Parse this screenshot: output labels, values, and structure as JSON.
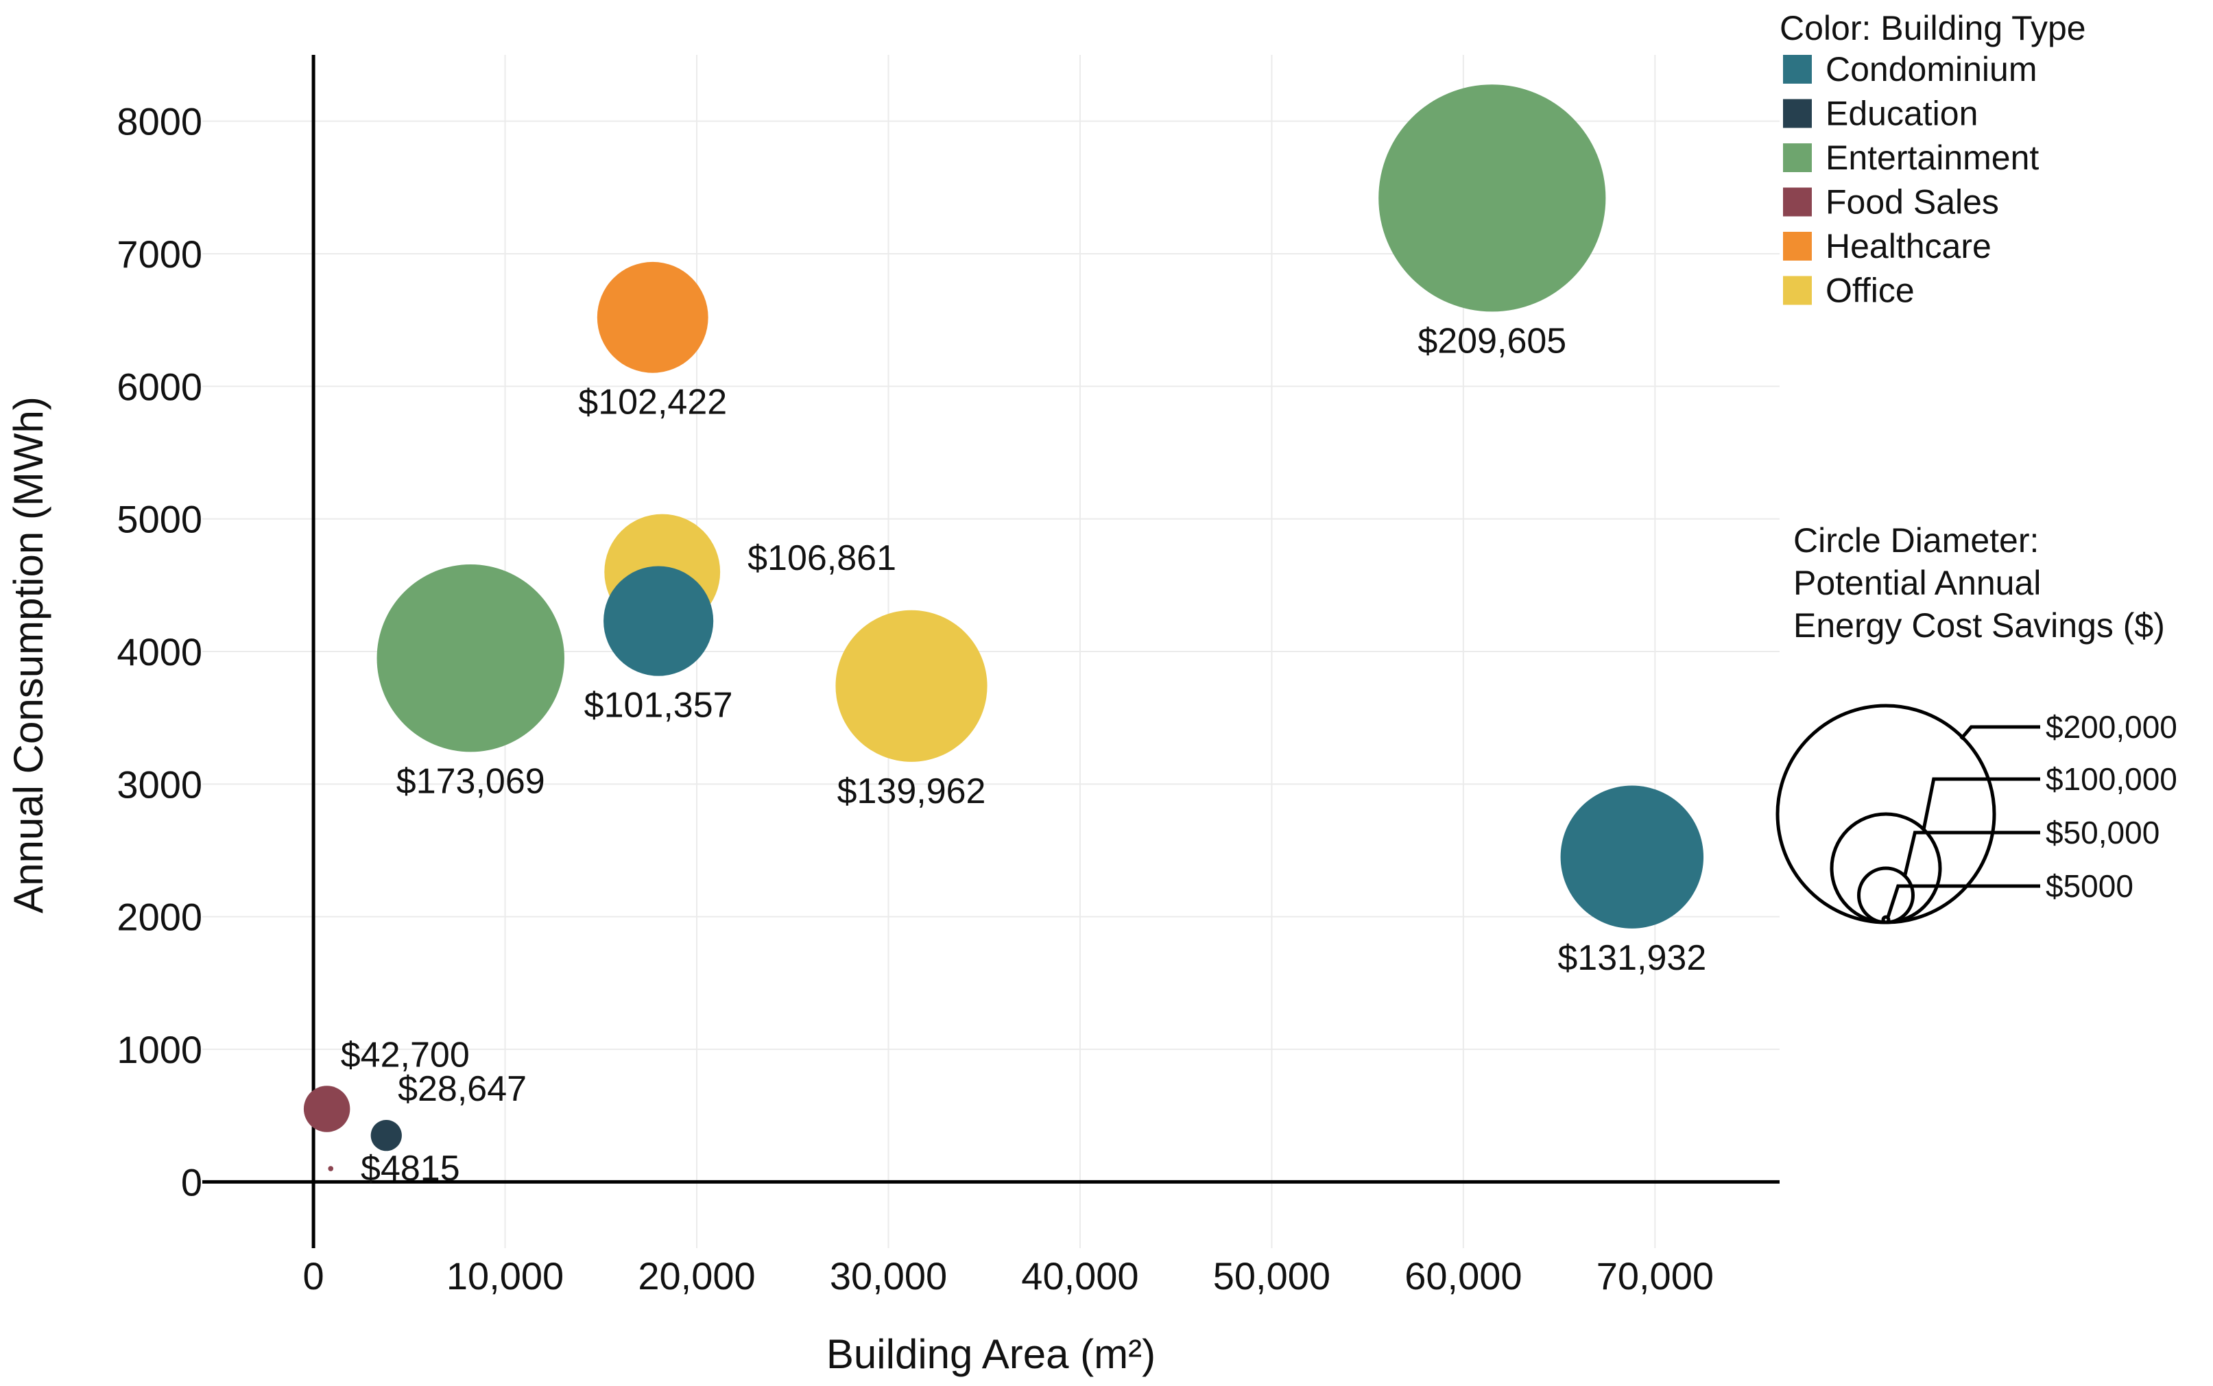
{
  "chart_data": {
    "type": "scatter",
    "xlabel": "Building Area (m²)",
    "ylabel": "Annual Consumption (MWh)",
    "xlim": [
      -5800,
      76500
    ],
    "ylim": [
      -500,
      8500
    ],
    "x_ticks": [
      0,
      10000,
      20000,
      30000,
      40000,
      50000,
      60000,
      70000
    ],
    "x_tick_labels": [
      "0",
      "10,000",
      "20,000",
      "30,000",
      "40,000",
      "50,000",
      "60,000",
      "70,000"
    ],
    "y_ticks": [
      0,
      1000,
      2000,
      3000,
      4000,
      5000,
      6000,
      7000,
      8000
    ],
    "y_tick_labels": [
      "0",
      "1000",
      "2000",
      "3000",
      "4000",
      "5000",
      "6000",
      "7000",
      "8000"
    ],
    "grid": true,
    "color_legend": {
      "title": "Color: Building Type",
      "placement": "top-right",
      "items": [
        {
          "label": "Condominium",
          "color": "#2d7383"
        },
        {
          "label": "Education",
          "color": "#26404f"
        },
        {
          "label": "Entertainment",
          "color": "#6ea56e"
        },
        {
          "label": "Food Sales",
          "color": "#8b4450"
        },
        {
          "label": "Healthcare",
          "color": "#f28e2f"
        },
        {
          "label": "Office",
          "color": "#ebc84a"
        }
      ]
    },
    "size_legend": {
      "title_lines": [
        "Circle Diameter:",
        "Potential Annual",
        "Energy Cost Savings ($)"
      ],
      "placement": "right",
      "items": [
        {
          "label": "$200,000",
          "value": 200000
        },
        {
          "label": "$100,000",
          "value": 100000
        },
        {
          "label": "$50,000",
          "value": 50000
        },
        {
          "label": "$5000",
          "value": 5000
        }
      ]
    },
    "series": [
      {
        "name": "Healthcare",
        "type": "Healthcare",
        "x": 17700,
        "y": 6520,
        "savings": 102422,
        "label": "$102,422",
        "label_pos": "below"
      },
      {
        "name": "Entertainment",
        "type": "Entertainment",
        "x": 61500,
        "y": 7420,
        "savings": 209605,
        "label": "$209,605",
        "label_pos": "below"
      },
      {
        "name": "Office",
        "type": "Office",
        "x": 18200,
        "y": 4600,
        "savings": 106861,
        "label": "$106,861",
        "label_pos": "right"
      },
      {
        "name": "Condominium",
        "type": "Condominium",
        "x": 18000,
        "y": 4230,
        "savings": 101357,
        "label": "$101,357",
        "label_pos": "below"
      },
      {
        "name": "Entertainment",
        "type": "Entertainment",
        "x": 8200,
        "y": 3950,
        "savings": 173069,
        "label": "$173,069",
        "label_pos": "below"
      },
      {
        "name": "Office",
        "type": "Office",
        "x": 31200,
        "y": 3740,
        "savings": 139962,
        "label": "$139,962",
        "label_pos": "below"
      },
      {
        "name": "Condominium",
        "type": "Condominium",
        "x": 68800,
        "y": 2450,
        "savings": 131932,
        "label": "$131,932",
        "label_pos": "below"
      },
      {
        "name": "Food Sales",
        "type": "Food Sales",
        "x": 700,
        "y": 550,
        "savings": 42700,
        "label": "$42,700",
        "label_pos": "above-right"
      },
      {
        "name": "Education",
        "type": "Education",
        "x": 3800,
        "y": 350,
        "savings": 28647,
        "label": "$28,647",
        "label_pos": "above-right"
      },
      {
        "name": "Food Sales",
        "type": "Food Sales",
        "x": 900,
        "y": 100,
        "savings": 4815,
        "label": "$4815",
        "label_pos": "right"
      }
    ]
  }
}
